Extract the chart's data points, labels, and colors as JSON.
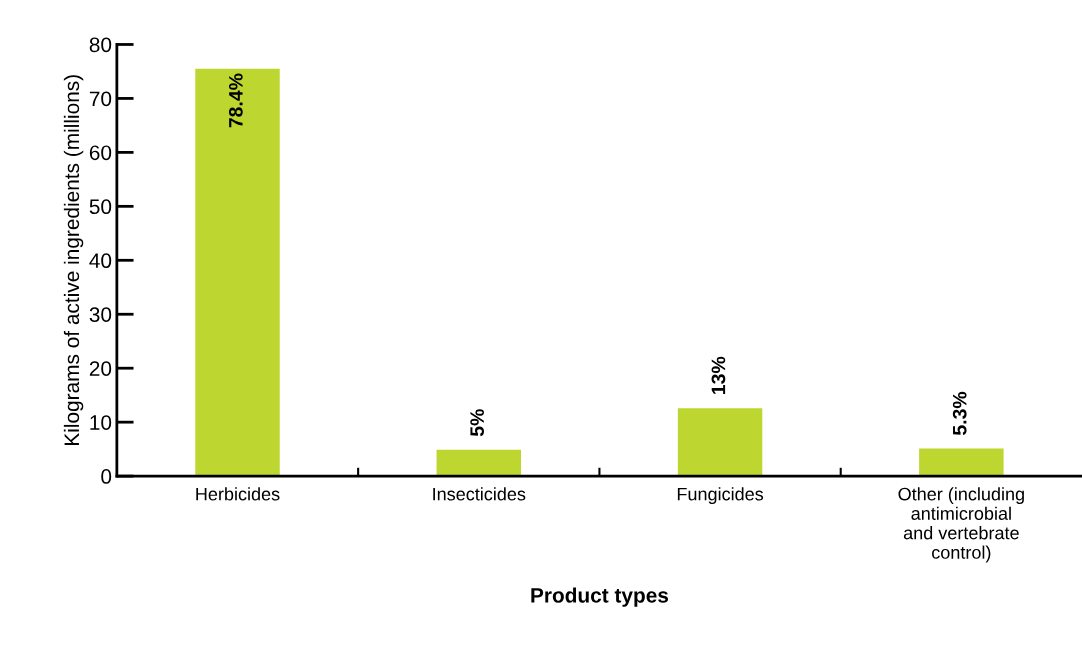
{
  "chart_data": {
    "type": "bar",
    "xlabel": "Product types",
    "ylabel": "Kilograms of active ingredients (millions)",
    "categories": [
      "Herbicides",
      "Insecticides",
      "Fungicides",
      "Other (including\nantimicrobial\nand vertebrate\ncontrol)"
    ],
    "values": [
      75.5,
      4.9,
      12.6,
      5.1
    ],
    "annotations": [
      {
        "text": "78.4%",
        "x": "Herbicides",
        "y": 75.5
      },
      {
        "text": "5%",
        "x": "Insecticides",
        "y": 4.9
      },
      {
        "text": "13%",
        "x": "Fungicides",
        "y": 12.6
      },
      {
        "text": "5.3%",
        "x": "Other (including\nantimicrobial\nand vertebrate\ncontrol)",
        "y": 5.1
      }
    ],
    "color": "#bed630",
    "ylim": [
      0,
      80
    ],
    "yticks": [
      0,
      10,
      20,
      30,
      40,
      50,
      60,
      70,
      80
    ],
    "grid": false
  }
}
